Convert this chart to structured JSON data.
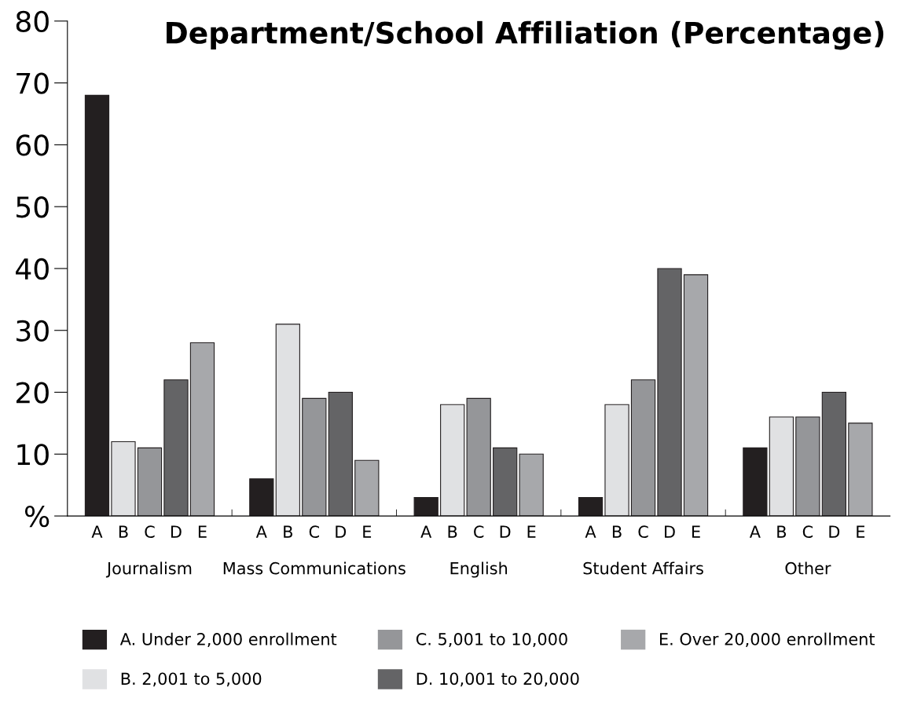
{
  "chart_data": {
    "type": "bar",
    "title": "Department/School Affiliation (Percentage)",
    "categories": [
      "Journalism",
      "Mass Communications",
      "English",
      "Student Affairs",
      "Other"
    ],
    "series": [
      {
        "name": "A. Under 2,000 enrollment",
        "color": "#231f20",
        "values": [
          68,
          6,
          3,
          3,
          11
        ]
      },
      {
        "name": "B. 2,001 to 5,000",
        "color": "#e0e1e3",
        "values": [
          12,
          31,
          18,
          18,
          16
        ]
      },
      {
        "name": "C. 5,001 to 10,000",
        "color": "#959699",
        "values": [
          11,
          19,
          19,
          22,
          16
        ]
      },
      {
        "name": "D. 10,001 to 20,000",
        "color": "#646466",
        "values": [
          22,
          20,
          11,
          40,
          20
        ]
      },
      {
        "name": "E. Over 20,000 enrollment",
        "color": "#a7a8ab",
        "values": [
          28,
          9,
          10,
          39,
          15
        ]
      }
    ],
    "annotations": [
      "A",
      "B",
      "C",
      "D",
      "E"
    ],
    "ylim": [
      0,
      80
    ],
    "yticks": [
      {
        "value": 0,
        "label": "%"
      },
      10,
      20,
      30,
      40,
      50,
      60,
      70,
      80
    ],
    "grid": false,
    "legend": "bottom"
  }
}
